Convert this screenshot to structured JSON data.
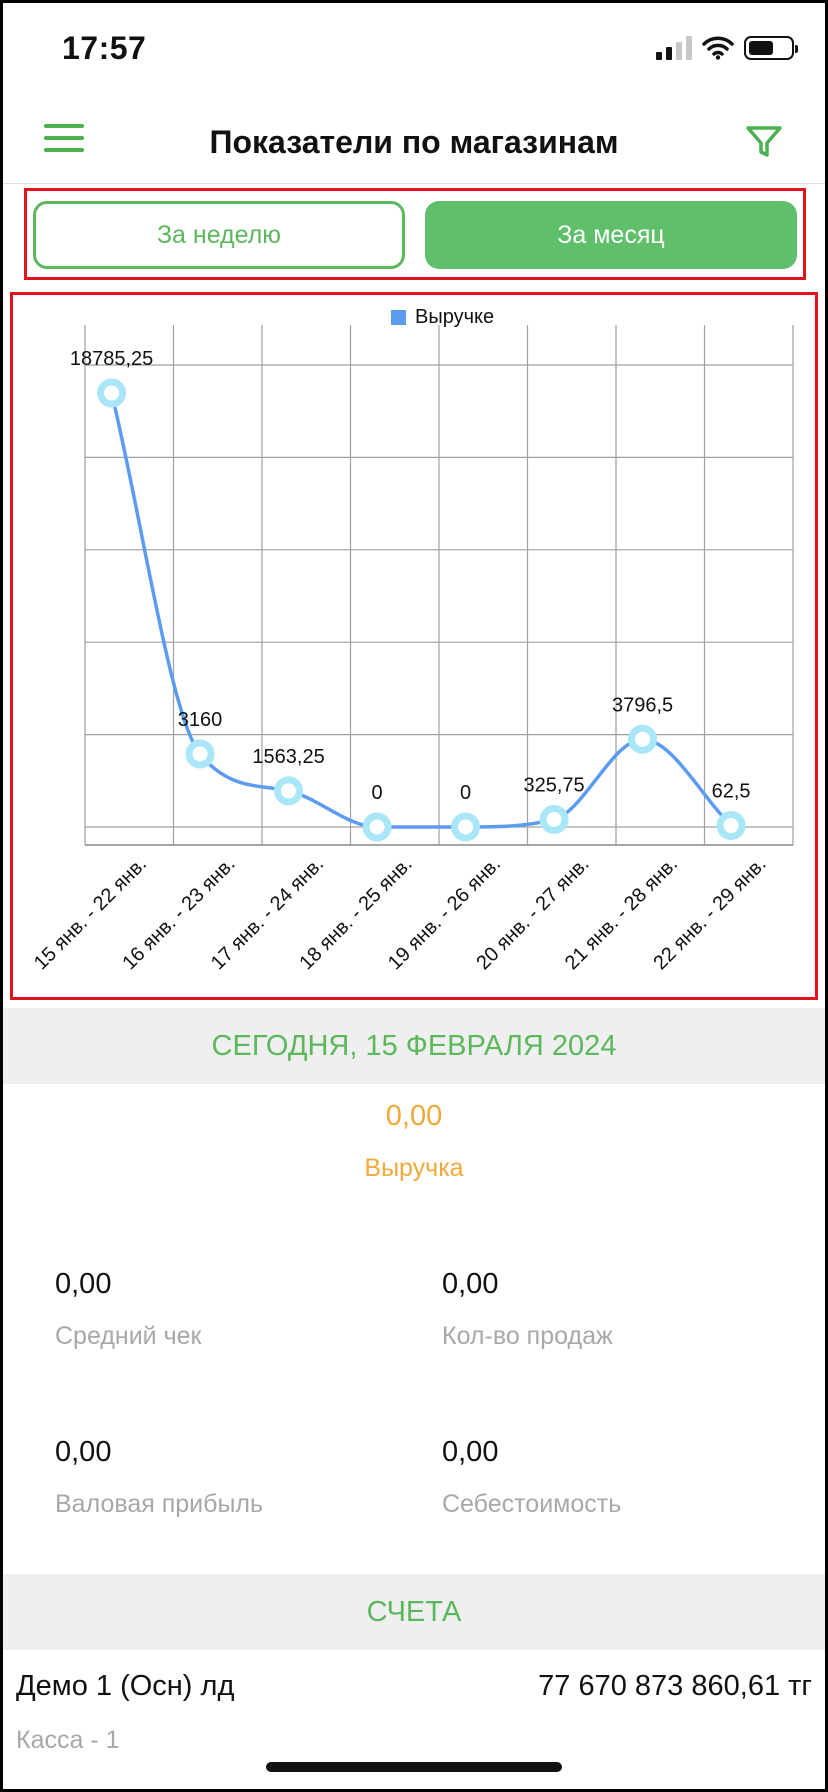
{
  "status_bar": {
    "time": "17:57"
  },
  "header": {
    "title": "Показатели по магазинам"
  },
  "period": {
    "week_label": "За неделю",
    "month_label": "За месяц",
    "selected": "month"
  },
  "chart_data": {
    "type": "line",
    "legend": "Выручке",
    "series_color": "#5b9bf0",
    "marker_color": "#a8e6f8",
    "categories": [
      "15 янв. - 22 янв.",
      "16 янв. - 23 янв.",
      "17 янв. - 24 янв.",
      "18 янв. - 25 янв.",
      "19 янв. - 26 янв.",
      "20 янв. - 27 янв.",
      "21 янв. - 28 янв.",
      "22 янв. - 29 янв."
    ],
    "values": [
      18785.25,
      3160,
      1563.25,
      0,
      0,
      325.75,
      3796.5,
      62.5
    ],
    "value_labels": [
      "18785,25",
      "3160",
      "1563,25",
      "0",
      "0",
      "325,75",
      "3796,5",
      "62,5"
    ],
    "ylim": [
      0,
      20000
    ],
    "grid": true,
    "legend_position": "top-center"
  },
  "today": {
    "heading": "СЕГОДНЯ,  15 ФЕВРАЛЯ 2024",
    "revenue_value": "0,00",
    "revenue_label": "Выручка",
    "metrics": [
      {
        "value": "0,00",
        "label": "Средний чек"
      },
      {
        "value": "0,00",
        "label": "Кол-во продаж"
      },
      {
        "value": "0,00",
        "label": "Валовая прибыль"
      },
      {
        "value": "0,00",
        "label": "Себестоимость"
      }
    ]
  },
  "accounts": {
    "heading": "СЧЕТА",
    "items": [
      {
        "name": "Демо 1 (Осн) лд",
        "amount": "77 670 873 860,61 тг",
        "sub": "Касса - 1"
      }
    ]
  },
  "colors": {
    "accent": "#5cb85c",
    "revenue": "#f0a93a",
    "highlight_border": "#e3121b"
  }
}
